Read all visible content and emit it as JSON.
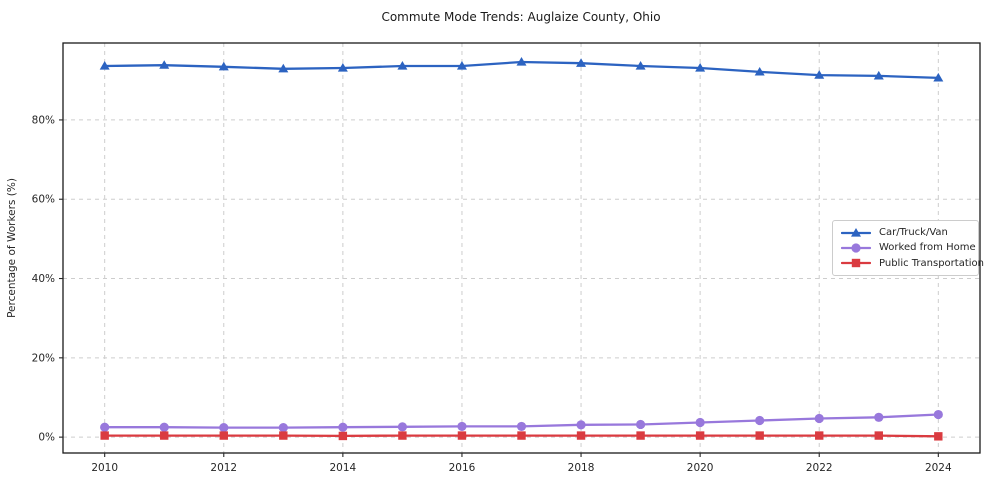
{
  "figure": {
    "title": "Commute Mode Trends: Auglaize County, Ohio"
  },
  "chart_data": {
    "type": "line",
    "title": "Commute Mode Trends: Auglaize County, Ohio",
    "xlabel": "",
    "ylabel": "Percentage of Workers (%)",
    "x": [
      2010,
      2011,
      2012,
      2013,
      2014,
      2015,
      2016,
      2017,
      2018,
      2019,
      2020,
      2021,
      2022,
      2023,
      2024
    ],
    "series": [
      {
        "name": "Car/Truck/Van",
        "marker": "triangle",
        "color": "#2c63c1",
        "values": [
          93.6,
          93.8,
          93.4,
          92.9,
          93.1,
          93.6,
          93.6,
          94.6,
          94.3,
          93.6,
          93.1,
          92.1,
          91.3,
          91.1,
          90.6
        ]
      },
      {
        "name": "Worked from Home",
        "marker": "circle",
        "color": "#9878dc",
        "values": [
          2.5,
          2.5,
          2.4,
          2.4,
          2.5,
          2.6,
          2.7,
          2.7,
          3.1,
          3.2,
          3.7,
          4.2,
          4.7,
          5.0,
          5.7
        ]
      },
      {
        "name": "Public Transportation",
        "marker": "square",
        "color": "#da3b40",
        "values": [
          0.4,
          0.4,
          0.4,
          0.4,
          0.3,
          0.4,
          0.4,
          0.4,
          0.4,
          0.4,
          0.4,
          0.4,
          0.4,
          0.4,
          0.2
        ]
      }
    ],
    "xticks": {
      "values": [
        2010,
        2012,
        2014,
        2016,
        2018,
        2020,
        2022,
        2024
      ],
      "labels": [
        "2010",
        "2012",
        "2014",
        "2016",
        "2018",
        "2020",
        "2022",
        "2024"
      ]
    },
    "yticks": {
      "values": [
        0,
        20,
        40,
        60,
        80
      ],
      "labels": [
        "0%",
        "20%",
        "40%",
        "60%",
        "80%"
      ]
    },
    "xlim": [
      2009.3,
      2024.7
    ],
    "ylim": [
      -4,
      99.4
    ],
    "grid": true,
    "grid_style": "dashed",
    "grid_color": "#cdcdcd",
    "legend_position": "right-middle"
  }
}
